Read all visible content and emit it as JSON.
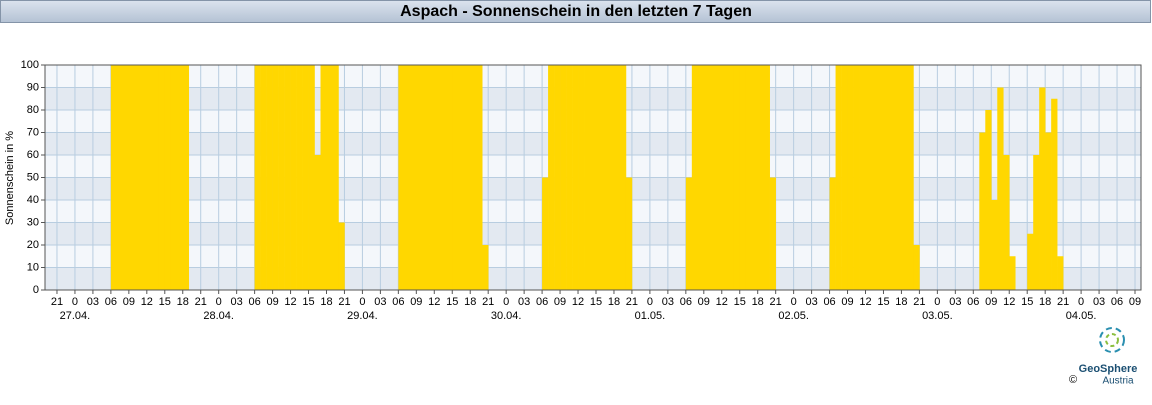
{
  "chart_data": {
    "type": "bar",
    "title": "Aspach - Sonnenschein in den letzten 7 Tagen",
    "ylabel": "Sonnenschein in %",
    "xlim": [
      -5,
      178
    ],
    "ylim": [
      0,
      100
    ],
    "yticks": [
      0,
      10,
      20,
      30,
      40,
      50,
      60,
      70,
      80,
      90,
      100
    ],
    "xticks": [
      {
        "value": -3,
        "label": "21"
      },
      {
        "value": 0,
        "label": "0"
      },
      {
        "value": 3,
        "label": "03"
      },
      {
        "value": 6,
        "label": "06"
      },
      {
        "value": 9,
        "label": "09"
      },
      {
        "value": 12,
        "label": "12"
      },
      {
        "value": 15,
        "label": "15"
      },
      {
        "value": 18,
        "label": "18"
      },
      {
        "value": 21,
        "label": "21"
      },
      {
        "value": 24,
        "label": "0"
      },
      {
        "value": 27,
        "label": "03"
      },
      {
        "value": 30,
        "label": "06"
      },
      {
        "value": 33,
        "label": "09"
      },
      {
        "value": 36,
        "label": "12"
      },
      {
        "value": 39,
        "label": "15"
      },
      {
        "value": 42,
        "label": "18"
      },
      {
        "value": 45,
        "label": "21"
      },
      {
        "value": 48,
        "label": "0"
      },
      {
        "value": 51,
        "label": "03"
      },
      {
        "value": 54,
        "label": "06"
      },
      {
        "value": 57,
        "label": "09"
      },
      {
        "value": 60,
        "label": "12"
      },
      {
        "value": 63,
        "label": "15"
      },
      {
        "value": 66,
        "label": "18"
      },
      {
        "value": 69,
        "label": "21"
      },
      {
        "value": 72,
        "label": "0"
      },
      {
        "value": 75,
        "label": "03"
      },
      {
        "value": 78,
        "label": "06"
      },
      {
        "value": 81,
        "label": "09"
      },
      {
        "value": 84,
        "label": "12"
      },
      {
        "value": 87,
        "label": "15"
      },
      {
        "value": 90,
        "label": "18"
      },
      {
        "value": 93,
        "label": "21"
      },
      {
        "value": 96,
        "label": "0"
      },
      {
        "value": 99,
        "label": "03"
      },
      {
        "value": 102,
        "label": "06"
      },
      {
        "value": 105,
        "label": "09"
      },
      {
        "value": 108,
        "label": "12"
      },
      {
        "value": 111,
        "label": "15"
      },
      {
        "value": 114,
        "label": "18"
      },
      {
        "value": 117,
        "label": "21"
      },
      {
        "value": 120,
        "label": "0"
      },
      {
        "value": 123,
        "label": "03"
      },
      {
        "value": 126,
        "label": "06"
      },
      {
        "value": 129,
        "label": "09"
      },
      {
        "value": 132,
        "label": "12"
      },
      {
        "value": 135,
        "label": "15"
      },
      {
        "value": 138,
        "label": "18"
      },
      {
        "value": 141,
        "label": "21"
      },
      {
        "value": 144,
        "label": "0"
      },
      {
        "value": 147,
        "label": "03"
      },
      {
        "value": 150,
        "label": "06"
      },
      {
        "value": 153,
        "label": "09"
      },
      {
        "value": 156,
        "label": "12"
      },
      {
        "value": 159,
        "label": "15"
      },
      {
        "value": 162,
        "label": "18"
      },
      {
        "value": 165,
        "label": "21"
      },
      {
        "value": 168,
        "label": "0"
      },
      {
        "value": 171,
        "label": "03"
      },
      {
        "value": 174,
        "label": "06"
      },
      {
        "value": 177,
        "label": "09"
      }
    ],
    "date_labels": [
      {
        "value": 0,
        "label": "27.04."
      },
      {
        "value": 24,
        "label": "28.04."
      },
      {
        "value": 48,
        "label": "29.04."
      },
      {
        "value": 72,
        "label": "30.04."
      },
      {
        "value": 96,
        "label": "01.05."
      },
      {
        "value": 120,
        "label": "02.05."
      },
      {
        "value": 144,
        "label": "03.05."
      },
      {
        "value": 168,
        "label": "04.05."
      }
    ],
    "grid": true,
    "color": "#ffd700",
    "x": [
      6,
      7,
      8,
      9,
      10,
      11,
      12,
      13,
      14,
      15,
      16,
      17,
      18,
      30,
      31,
      32,
      33,
      34,
      35,
      36,
      37,
      38,
      39,
      40,
      41,
      42,
      43,
      44,
      54,
      55,
      56,
      57,
      58,
      59,
      60,
      61,
      62,
      63,
      64,
      65,
      66,
      67,
      68,
      78,
      79,
      80,
      81,
      82,
      83,
      84,
      85,
      86,
      87,
      88,
      89,
      90,
      91,
      92,
      102,
      103,
      104,
      105,
      106,
      107,
      108,
      109,
      110,
      111,
      112,
      113,
      114,
      115,
      116,
      126,
      127,
      128,
      129,
      130,
      131,
      132,
      133,
      134,
      135,
      136,
      137,
      138,
      139,
      140,
      151,
      152,
      153,
      154,
      155,
      156,
      159,
      160,
      161,
      162,
      163,
      164
    ],
    "values": [
      100,
      100,
      100,
      100,
      100,
      100,
      100,
      100,
      100,
      100,
      100,
      100,
      100,
      100,
      100,
      100,
      100,
      100,
      100,
      100,
      100,
      100,
      100,
      60,
      100,
      100,
      100,
      30,
      100,
      100,
      100,
      100,
      100,
      100,
      100,
      100,
      100,
      100,
      100,
      100,
      100,
      100,
      20,
      50,
      100,
      100,
      100,
      100,
      100,
      100,
      100,
      100,
      100,
      100,
      100,
      100,
      100,
      50,
      50,
      100,
      100,
      100,
      100,
      100,
      100,
      100,
      100,
      100,
      100,
      100,
      100,
      100,
      50,
      50,
      100,
      100,
      100,
      100,
      100,
      100,
      100,
      100,
      100,
      100,
      100,
      100,
      100,
      20,
      70,
      80,
      40,
      90,
      60,
      15,
      25,
      60,
      90,
      70,
      85,
      15
    ]
  },
  "logo": {
    "name": "GeoSphere",
    "country": "Austria",
    "copyright": "©"
  }
}
